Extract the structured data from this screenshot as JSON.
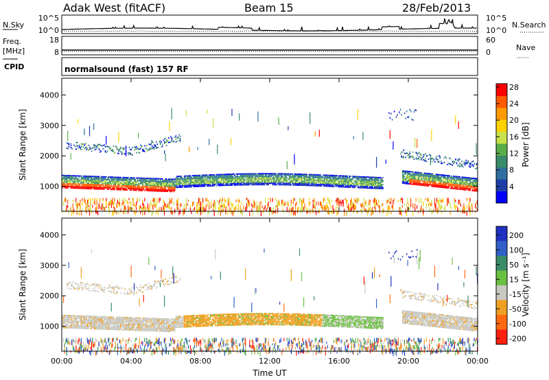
{
  "header": {
    "station": "Adak West (fitACF)",
    "beam": "Beam 15",
    "date": "28/Feb/2013"
  },
  "top_panels": {
    "nsky_label": "N.Sky",
    "nsearch_label": "N.Search",
    "nsky_ticks": [
      "10^5",
      "10^0"
    ],
    "nsearch_ticks": [
      "10^5",
      "10^0"
    ],
    "freq_label": "Freq.",
    "freq_unit": "[MHz]",
    "freq_ticks": [
      "18",
      "8"
    ],
    "nave_label": "Nave",
    "nave_ticks": [
      "60",
      "0"
    ],
    "cpid_label": "CPID",
    "cpid_text": "normalsound (fast) 157 RF"
  },
  "colors": {
    "power": [
      "#0000ff",
      "#1f3fa8",
      "#2f6f9f",
      "#3a8c6a",
      "#5aae4a",
      "#c8e04a",
      "#ffd000",
      "#ff9a00",
      "#ff5a00",
      "#ff0000"
    ],
    "velocity": [
      "#2030c0",
      "#3060c8",
      "#3a8a6a",
      "#6ac040",
      "#c8c8c0",
      "#f0a020",
      "#ff6a10",
      "#ff2010"
    ]
  },
  "chart_data": [
    {
      "type": "heatmap",
      "name": "power",
      "ylabel": "Slant Range [km]",
      "xlabel": "Time UT",
      "x_ticks": [
        "00:00",
        "04:00",
        "08:00",
        "12:00",
        "16:00",
        "20:00",
        "00:00"
      ],
      "y_ticks": [
        "1000",
        "2000",
        "3000",
        "4000"
      ],
      "ylim": [
        180,
        4550
      ],
      "xlim_hours": [
        0,
        24
      ],
      "colorbar_label": "Power [dB]",
      "colorbar_ticks": [
        "4",
        "8",
        "12",
        "16",
        "20",
        "24",
        "28"
      ]
    },
    {
      "type": "heatmap",
      "name": "velocity",
      "ylabel": "Slant Range [km]",
      "xlabel": "Time UT",
      "x_ticks": [
        "00:00",
        "04:00",
        "08:00",
        "12:00",
        "16:00",
        "20:00",
        "00:00"
      ],
      "y_ticks": [
        "1000",
        "2000",
        "3000",
        "4000"
      ],
      "ylim": [
        180,
        4550
      ],
      "xlim_hours": [
        0,
        24
      ],
      "colorbar_label": "Velocity [m s⁻¹]",
      "colorbar_ticks": [
        "200",
        "100",
        "50",
        "15",
        "-15",
        "-50",
        "-100",
        "-200"
      ]
    }
  ]
}
